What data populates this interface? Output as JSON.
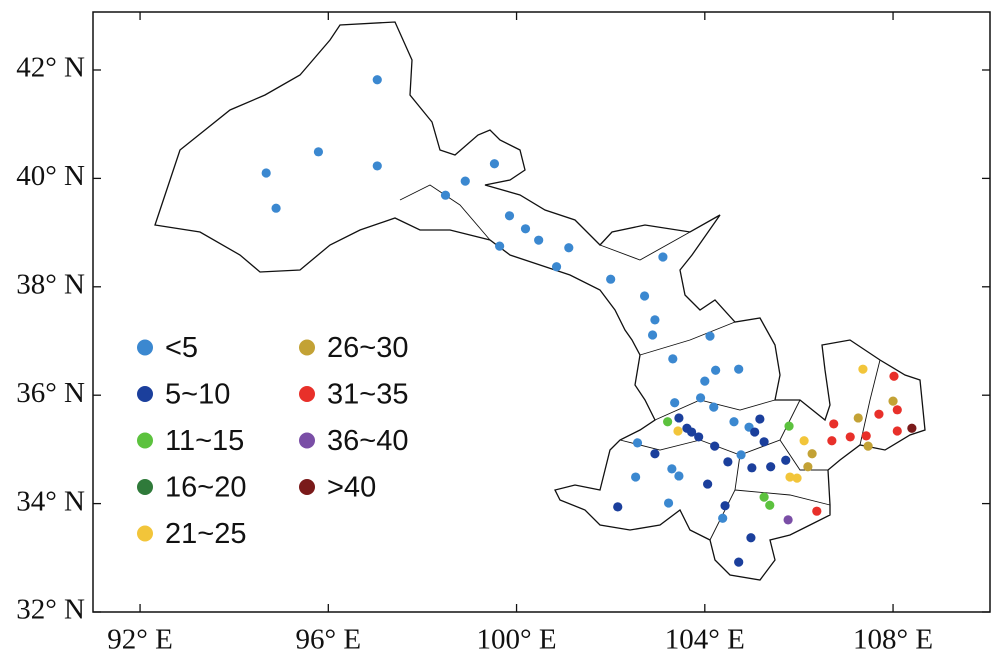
{
  "chart_data": {
    "type": "scatter",
    "xlim": [
      91,
      110.06
    ],
    "ylim": [
      32,
      43.07
    ],
    "xticks": [
      {
        "value": 92,
        "label": "92° E"
      },
      {
        "value": 96,
        "label": "96° E"
      },
      {
        "value": 100,
        "label": "100° E"
      },
      {
        "value": 104,
        "label": "104° E"
      },
      {
        "value": 108,
        "label": "108° E"
      }
    ],
    "yticks": [
      {
        "value": 32,
        "label": "32° N"
      },
      {
        "value": 34,
        "label": "34° N"
      },
      {
        "value": 36,
        "label": "36° N"
      },
      {
        "value": 38,
        "label": "38° N"
      },
      {
        "value": 40,
        "label": "40° N"
      },
      {
        "value": 42,
        "label": "42° N"
      }
    ],
    "grid": false,
    "legend": "lower left",
    "series": [
      {
        "name": "<5",
        "color": "#3b88d0",
        "x": [
          97.04,
          95.79,
          97.04,
          94.68,
          94.89,
          99.53,
          98.91,
          98.49,
          99.85,
          100.19,
          99.64,
          100.47,
          101.11,
          100.85,
          102.0,
          103.11,
          102.72,
          102.94,
          102.89,
          103.32,
          104.11,
          104.23,
          104.72,
          104.0,
          103.91,
          104.19,
          103.36,
          102.57,
          104.62,
          104.94,
          103.3,
          103.45,
          102.53,
          103.23,
          104.38,
          104.77
        ],
        "y": [
          41.82,
          40.49,
          40.23,
          40.1,
          39.45,
          40.27,
          39.95,
          39.69,
          39.31,
          39.07,
          38.75,
          38.86,
          38.72,
          38.37,
          38.14,
          38.55,
          37.83,
          37.39,
          37.11,
          36.67,
          37.09,
          36.46,
          36.48,
          36.26,
          35.95,
          35.78,
          35.86,
          35.12,
          35.51,
          35.41,
          34.64,
          34.51,
          34.49,
          34.01,
          33.73,
          34.9
        ]
      },
      {
        "name": "5~10",
        "color": "#1b3f9c",
        "x": [
          103.45,
          103.62,
          103.72,
          103.87,
          104.21,
          104.49,
          105.0,
          105.4,
          105.72,
          105.17,
          105.26,
          105.06,
          104.06,
          104.43,
          104.98,
          104.72,
          102.15,
          102.94
        ],
        "y": [
          35.58,
          35.39,
          35.32,
          35.23,
          35.06,
          34.77,
          34.66,
          34.68,
          34.8,
          35.56,
          35.14,
          35.32,
          34.36,
          33.96,
          33.37,
          32.92,
          33.94,
          34.92
        ]
      },
      {
        "name": "11~15",
        "color": "#5cc23e",
        "x": [
          103.21,
          105.79,
          105.26,
          105.38
        ],
        "y": [
          35.51,
          35.43,
          34.12,
          33.97
        ]
      },
      {
        "name": "16~20",
        "color": "#2f7a3a",
        "x": [],
        "y": []
      },
      {
        "name": "21~25",
        "color": "#f2c53a",
        "x": [
          103.43,
          106.11,
          105.81,
          105.96,
          107.36
        ],
        "y": [
          35.34,
          35.16,
          34.49,
          34.47,
          36.48
        ]
      },
      {
        "name": "26~30",
        "color": "#c3a235",
        "x": [
          106.28,
          106.19,
          107.26,
          108.0,
          107.47
        ],
        "y": [
          34.92,
          34.68,
          35.58,
          35.89,
          35.06
        ]
      },
      {
        "name": "31~35",
        "color": "#e8302a",
        "x": [
          108.02,
          108.09,
          107.7,
          107.43,
          107.09,
          106.74,
          106.7,
          108.09,
          106.38
        ],
        "y": [
          36.35,
          35.73,
          35.65,
          35.25,
          35.23,
          35.47,
          35.16,
          35.34,
          33.86
        ]
      },
      {
        "name": "36~40",
        "color": "#7a4ea6",
        "x": [
          105.77
        ],
        "y": [
          33.7
        ]
      },
      {
        "name": ">40",
        "color": "#7a1a1a",
        "x": [
          108.4
        ],
        "y": [
          35.39
        ]
      }
    ]
  }
}
